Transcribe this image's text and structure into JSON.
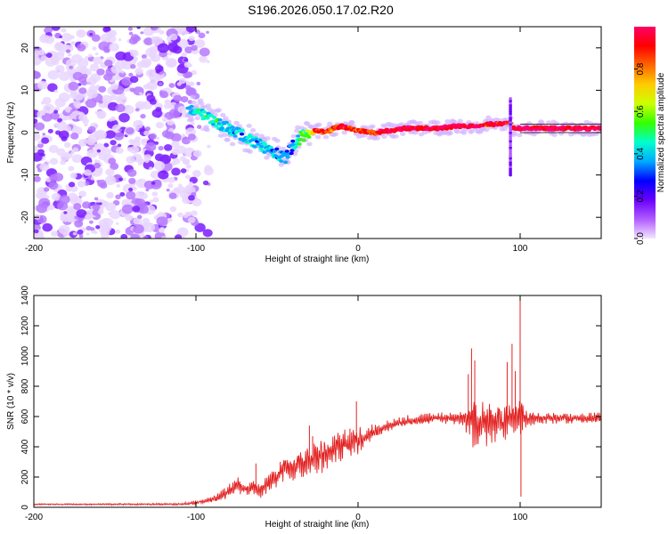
{
  "title": "S196.2026.050.17.02.R20",
  "chart_data": [
    {
      "type": "heatmap",
      "xlabel": "Height of straight line (km)",
      "ylabel": "Frequency (Hz)",
      "xlim": [
        -200,
        150
      ],
      "ylim": [
        -25,
        25
      ],
      "xticks": [
        -200,
        -100,
        0,
        100
      ],
      "yticks": [
        -20,
        -10,
        0,
        10,
        20
      ],
      "colorbar": {
        "label": "Normalized spectral amplitude",
        "range": [
          0,
          1
        ],
        "ticks": [
          "0.0",
          "0.2",
          "0.4",
          "0.6",
          "0.8"
        ],
        "colors": [
          "#f3e6ff",
          "#b15cff",
          "#6a00ff",
          "#0000ff",
          "#00aaff",
          "#00ffcc",
          "#33ff00",
          "#ccff00",
          "#ffcc00",
          "#ff6600",
          "#ff0000",
          "#ff0066"
        ]
      },
      "noise_region": {
        "x_range": [
          -200,
          -100
        ],
        "y_range": [
          -25,
          25
        ],
        "amplitude": "0.1-0.3"
      },
      "trace": {
        "x": [
          -105,
          -100,
          -90,
          -80,
          -70,
          -60,
          -50,
          -45,
          -40,
          -35,
          -30,
          -25,
          -20,
          -15,
          -10,
          -5,
          0,
          10,
          20,
          30,
          40,
          50,
          60,
          70,
          80,
          90,
          93,
          96,
          100,
          110,
          120,
          130,
          140,
          150
        ],
        "y": [
          6,
          5,
          3,
          1,
          -1,
          -3,
          -5,
          -6,
          -3,
          -1,
          0,
          0.5,
          0,
          1,
          1.5,
          1,
          0.5,
          0,
          0.5,
          1,
          1,
          1,
          1.5,
          1.5,
          2,
          2,
          2.5,
          1,
          1,
          1,
          1,
          1,
          1,
          1
        ],
        "amp": [
          0.4,
          0.45,
          0.45,
          0.4,
          0.4,
          0.4,
          0.4,
          0.35,
          0.35,
          0.5,
          0.6,
          0.9,
          0.85,
          0.8,
          0.9,
          0.85,
          0.8,
          0.85,
          0.95,
          0.95,
          0.9,
          0.95,
          0.95,
          0.95,
          0.9,
          0.9,
          0.85,
          0.9,
          0.95,
          0.95,
          0.95,
          0.95,
          0.95,
          0.95
        ]
      },
      "spike": {
        "x": 94,
        "y_range": [
          -10,
          8
        ]
      }
    },
    {
      "type": "line",
      "xlabel": "Height of straight line (km)",
      "ylabel": "SNR (10 * v/v)",
      "xlim": [
        -200,
        150
      ],
      "ylim": [
        0,
        1400
      ],
      "xticks": [
        -200,
        -100,
        0,
        100
      ],
      "yticks": [
        0,
        200,
        400,
        600,
        800,
        1000,
        1200,
        1400
      ],
      "color": "#e32222",
      "envelope": {
        "x": [
          -200,
          -110,
          -100,
          -90,
          -80,
          -75,
          -70,
          -65,
          -60,
          -55,
          -50,
          -45,
          -40,
          -35,
          -30,
          -25,
          -20,
          -15,
          -10,
          -5,
          0,
          5,
          10,
          20,
          30,
          40,
          50,
          60,
          65,
          70,
          75,
          80,
          85,
          90,
          95,
          98,
          100,
          102,
          105,
          110,
          120,
          130,
          140,
          150
        ],
        "base": [
          20,
          20,
          30,
          50,
          100,
          150,
          120,
          130,
          120,
          160,
          200,
          260,
          250,
          300,
          310,
          340,
          350,
          380,
          420,
          430,
          440,
          470,
          500,
          540,
          570,
          580,
          590,
          590,
          590,
          580,
          560,
          560,
          570,
          570,
          580,
          590,
          590,
          590,
          590,
          590,
          590,
          590,
          590,
          590
        ],
        "amp": [
          5,
          8,
          15,
          20,
          50,
          60,
          50,
          50,
          60,
          70,
          80,
          80,
          90,
          100,
          120,
          130,
          120,
          120,
          120,
          100,
          100,
          80,
          60,
          40,
          40,
          40,
          40,
          50,
          60,
          200,
          180,
          160,
          140,
          150,
          140,
          100,
          300,
          80,
          60,
          40,
          40,
          40,
          40,
          40
        ]
      },
      "spikes": [
        {
          "x": -63,
          "y": 290
        },
        {
          "x": -48,
          "y": 300
        },
        {
          "x": -30,
          "y": 540
        },
        {
          "x": -28,
          "y": 470
        },
        {
          "x": -5,
          "y": 520
        },
        {
          "x": -1,
          "y": 700
        },
        {
          "x": 68,
          "y": 880
        },
        {
          "x": 70,
          "y": 1050
        },
        {
          "x": 72,
          "y": 970
        },
        {
          "x": 92,
          "y": 960
        },
        {
          "x": 95,
          "y": 1080
        },
        {
          "x": 100,
          "y": 1400
        },
        {
          "x": 100.5,
          "y": 70
        },
        {
          "x": 97,
          "y": 900
        }
      ]
    }
  ]
}
